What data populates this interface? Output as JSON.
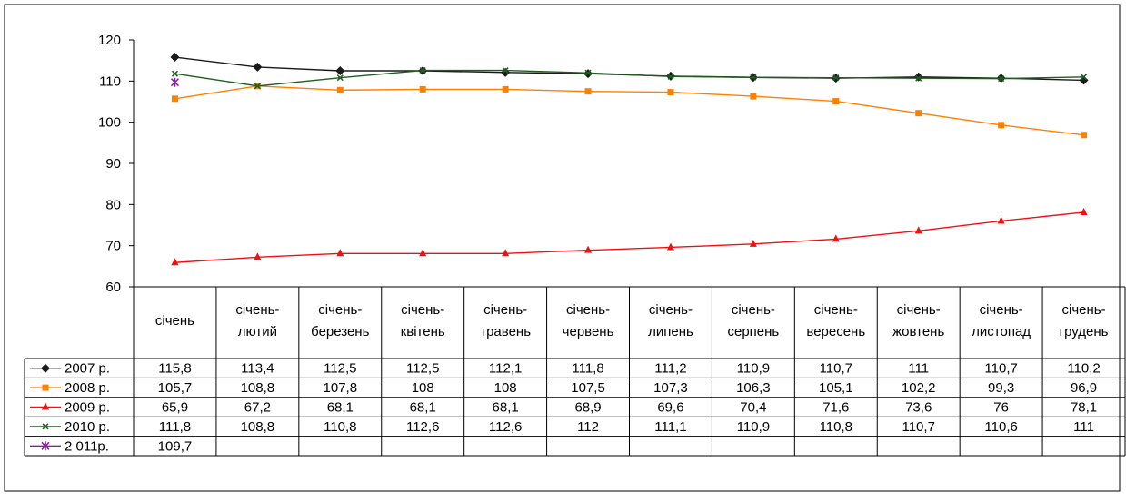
{
  "chart_data": {
    "type": "line",
    "categories": [
      "січень",
      "січень-лютий",
      "січень-березень",
      "січень-квітень",
      "січень-травень",
      "січень-червень",
      "січень-липень",
      "січень-серпень",
      "січень-вересень",
      "січень-жовтень",
      "січень-листопад",
      "січень-грудень"
    ],
    "category_lines": [
      [
        "січень"
      ],
      [
        "січень-",
        "лютий"
      ],
      [
        "січень-",
        "березень"
      ],
      [
        "січень-",
        "квітень"
      ],
      [
        "січень-",
        "травень"
      ],
      [
        "січень-",
        "червень"
      ],
      [
        "січень-",
        "липень"
      ],
      [
        "січень-",
        "серпень"
      ],
      [
        "січень-",
        "вересень"
      ],
      [
        "січень-",
        "жовтень"
      ],
      [
        "січень-",
        "листопад"
      ],
      [
        "січень-",
        "грудень"
      ]
    ],
    "ylim": [
      60,
      120
    ],
    "yticks": [
      60,
      70,
      80,
      90,
      100,
      110,
      120
    ],
    "title": "",
    "xlabel": "",
    "ylabel": "",
    "grid": false,
    "legend": "data-table",
    "series": [
      {
        "name": "2007 р.",
        "color": "#1a1a1a",
        "marker": "diamond",
        "values": [
          115.8,
          113.4,
          112.5,
          112.5,
          112.1,
          111.8,
          111.2,
          110.9,
          110.7,
          111,
          110.7,
          110.2
        ],
        "labels": [
          "115,8",
          "113,4",
          "112,5",
          "112,5",
          "112,1",
          "111,8",
          "111,2",
          "110,9",
          "110,7",
          "111",
          "110,7",
          "110,2"
        ]
      },
      {
        "name": "2008 р.",
        "color": "#ff8000",
        "marker": "square",
        "values": [
          105.7,
          108.8,
          107.8,
          108,
          108,
          107.5,
          107.3,
          106.3,
          105.1,
          102.2,
          99.3,
          96.9
        ],
        "labels": [
          "105,7",
          "108,8",
          "107,8",
          "108",
          "108",
          "107,5",
          "107,3",
          "106,3",
          "105,1",
          "102,2",
          "99,3",
          "96,9"
        ]
      },
      {
        "name": "2009 р.",
        "color": "#ee1111",
        "marker": "triangle",
        "values": [
          65.9,
          67.2,
          68.1,
          68.1,
          68.1,
          68.9,
          69.6,
          70.4,
          71.6,
          73.6,
          76,
          78.1
        ],
        "labels": [
          "65,9",
          "67,2",
          "68,1",
          "68,1",
          "68,1",
          "68,9",
          "69,6",
          "70,4",
          "71,6",
          "73,6",
          "76",
          "78,1"
        ]
      },
      {
        "name": "2010 р.",
        "color": "#1f5c1f",
        "marker": "x",
        "values": [
          111.8,
          108.8,
          110.8,
          112.6,
          112.6,
          112,
          111.1,
          110.9,
          110.8,
          110.7,
          110.6,
          111
        ],
        "labels": [
          "111,8",
          "108,8",
          "110,8",
          "112,6",
          "112,6",
          "112",
          "111,1",
          "110,9",
          "110,8",
          "110,7",
          "110,6",
          "111"
        ]
      },
      {
        "name": "2 011р.",
        "color": "#8b1fa6",
        "marker": "star",
        "values": [
          109.7,
          null,
          null,
          null,
          null,
          null,
          null,
          null,
          null,
          null,
          null,
          null
        ],
        "labels": [
          "109,7",
          "",
          "",
          "",
          "",
          "",
          "",
          "",
          "",
          "",
          "",
          ""
        ]
      }
    ]
  }
}
